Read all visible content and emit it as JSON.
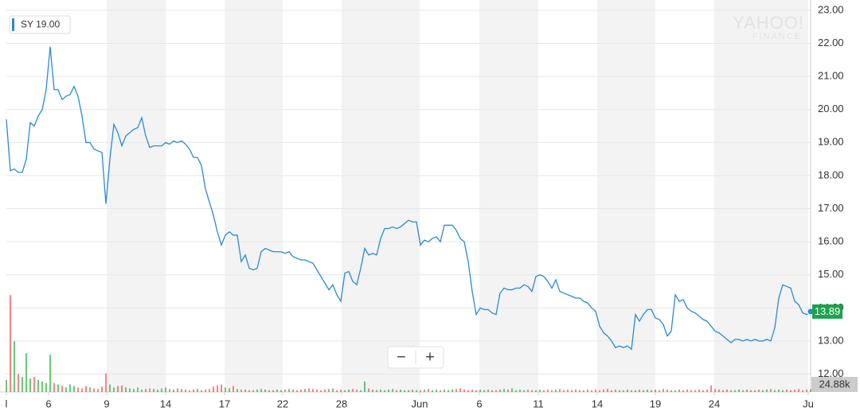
{
  "chart_data": {
    "type": "line",
    "legend_label": "SY 19.00",
    "watermark": [
      "YAHOO!",
      "FINANCE"
    ],
    "zoom_out": "−",
    "zoom_in": "+",
    "grid": true,
    "band_color": "#f3f3f3",
    "series": [
      {
        "color": "#2a8ad4",
        "values": [
          19.7,
          18.15,
          18.2,
          18.1,
          18.1,
          18.5,
          19.6,
          19.5,
          19.8,
          20.0,
          20.6,
          21.9,
          20.6,
          20.6,
          20.3,
          20.4,
          20.45,
          20.7,
          20.4,
          19.8,
          19.0,
          19.0,
          18.8,
          18.75,
          18.7,
          17.15,
          18.5,
          19.55,
          19.3,
          18.9,
          19.2,
          19.3,
          19.4,
          19.45,
          19.75,
          19.2,
          18.85,
          18.9,
          18.9,
          18.9,
          19.0,
          18.95,
          19.05,
          19.0,
          19.05,
          18.95,
          18.8,
          18.55,
          18.55,
          18.3,
          17.6,
          17.2,
          16.8,
          16.3,
          15.9,
          16.2,
          16.3,
          16.2,
          16.2,
          15.4,
          15.6,
          15.2,
          15.15,
          15.2,
          15.7,
          15.8,
          15.75,
          15.7,
          15.7,
          15.7,
          15.65,
          15.7,
          15.55,
          15.5,
          15.45,
          15.45,
          15.4,
          15.35,
          15.15,
          14.95,
          14.75,
          14.55,
          14.7,
          14.4,
          14.2,
          15.05,
          15.1,
          14.8,
          14.7,
          15.2,
          15.8,
          15.6,
          15.65,
          15.6,
          16.1,
          16.4,
          16.4,
          16.45,
          16.4,
          16.45,
          16.55,
          16.65,
          16.6,
          16.6,
          15.9,
          16.05,
          16.0,
          16.1,
          16.15,
          16.0,
          16.5,
          16.5,
          16.5,
          16.35,
          16.1,
          16.0,
          15.4,
          14.5,
          13.8,
          14.0,
          13.95,
          13.95,
          13.85,
          13.8,
          14.45,
          14.6,
          14.55,
          14.55,
          14.6,
          14.6,
          14.7,
          14.65,
          14.5,
          14.95,
          15.0,
          14.95,
          14.8,
          14.6,
          14.85,
          14.5,
          14.45,
          14.4,
          14.35,
          14.3,
          14.3,
          14.2,
          14.15,
          14.0,
          13.9,
          13.45,
          13.25,
          13.15,
          13.0,
          12.8,
          12.85,
          12.8,
          12.85,
          12.75,
          13.8,
          13.6,
          13.8,
          13.95,
          13.95,
          13.7,
          13.65,
          13.5,
          13.15,
          13.3,
          14.4,
          14.2,
          14.25,
          14.0,
          13.9,
          13.85,
          13.75,
          13.65,
          13.6,
          13.45,
          13.3,
          13.25,
          13.15,
          13.05,
          12.95,
          13.05,
          13.05,
          13.0,
          13.05,
          13.0,
          13.05,
          13.0,
          13.0,
          13.05,
          13.0,
          13.4,
          14.3,
          14.7,
          14.65,
          14.6,
          14.2,
          14.1,
          13.85,
          13.8,
          13.89
        ]
      }
    ],
    "xlim": [
      0,
      202
    ],
    "xticks": [
      {
        "value": 0,
        "label": "l"
      },
      {
        "value": 10.6,
        "label": "6"
      },
      {
        "value": 25.2,
        "label": "9"
      },
      {
        "value": 40,
        "label": "14"
      },
      {
        "value": 54.8,
        "label": "17"
      },
      {
        "value": 69.4,
        "label": "22"
      },
      {
        "value": 84.2,
        "label": "28"
      },
      {
        "value": 103.8,
        "label": "Jun"
      },
      {
        "value": 118.8,
        "label": "6"
      },
      {
        "value": 133.6,
        "label": "11"
      },
      {
        "value": 148.4,
        "label": "14"
      },
      {
        "value": 163,
        "label": "19"
      },
      {
        "value": 177.8,
        "label": "24"
      },
      {
        "value": 201.4,
        "label": "Ju"
      }
    ],
    "ylim": [
      11.46,
      23.31
    ],
    "yticks": [
      {
        "value": 12,
        "label": "12.00"
      },
      {
        "value": 13,
        "label": "13.00"
      },
      {
        "value": 14,
        "label": "14.00"
      },
      {
        "value": 15,
        "label": "15.00"
      },
      {
        "value": 16,
        "label": "16.00"
      },
      {
        "value": 17,
        "label": "17.00"
      },
      {
        "value": 18,
        "label": "18.00"
      },
      {
        "value": 19,
        "label": "19.00"
      },
      {
        "value": 20,
        "label": "20.00"
      },
      {
        "value": 21,
        "label": "21.00"
      },
      {
        "value": 22,
        "label": "22.00"
      },
      {
        "value": 23,
        "label": "23.00"
      }
    ],
    "volume": {
      "label": "24.88k",
      "vlim": [
        0,
        400
      ],
      "up_color": "#3cb44b",
      "down_color": "#f25c5c",
      "values": [
        40,
        325,
        170,
        60,
        50,
        130,
        45,
        50,
        40,
        35,
        30,
        125,
        30,
        25,
        20,
        15,
        25,
        20,
        15,
        12,
        20,
        15,
        12,
        10,
        18,
        62,
        25,
        15,
        20,
        22,
        15,
        12,
        10,
        15,
        8,
        10,
        12,
        10,
        8,
        12,
        15,
        10,
        8,
        12,
        10,
        8,
        6,
        8,
        10,
        6,
        8,
        10,
        18,
        22,
        25,
        15,
        12,
        20,
        10,
        8,
        8,
        6,
        6,
        8,
        10,
        8,
        6,
        6,
        8,
        6,
        8,
        10,
        8,
        6,
        8,
        10,
        12,
        10,
        8,
        6,
        8,
        10,
        12,
        6,
        8,
        6,
        8,
        10,
        8,
        6,
        35,
        12,
        8,
        6,
        8,
        6,
        8,
        10,
        6,
        8,
        6,
        6,
        8,
        6,
        6,
        8,
        10,
        6,
        8,
        6,
        8,
        6,
        8,
        10,
        12,
        8,
        6,
        8,
        6,
        8,
        6,
        8,
        6,
        6,
        8,
        10,
        8,
        12,
        6,
        8,
        6,
        8,
        6,
        6,
        8,
        6,
        8,
        6,
        8,
        10,
        6,
        8,
        6,
        8,
        6,
        6,
        8,
        6,
        8,
        6,
        8,
        10,
        6,
        8,
        6,
        6,
        8,
        6,
        6,
        8,
        6,
        8,
        6,
        8,
        6,
        10,
        8,
        6,
        6,
        8,
        6,
        8,
        6,
        6,
        8,
        6,
        8,
        22,
        10,
        8,
        6,
        8,
        6,
        6,
        8,
        6,
        8,
        6,
        6,
        8,
        6,
        8,
        10,
        6,
        8,
        6,
        8,
        6,
        8,
        10,
        6,
        8,
        9
      ]
    }
  }
}
